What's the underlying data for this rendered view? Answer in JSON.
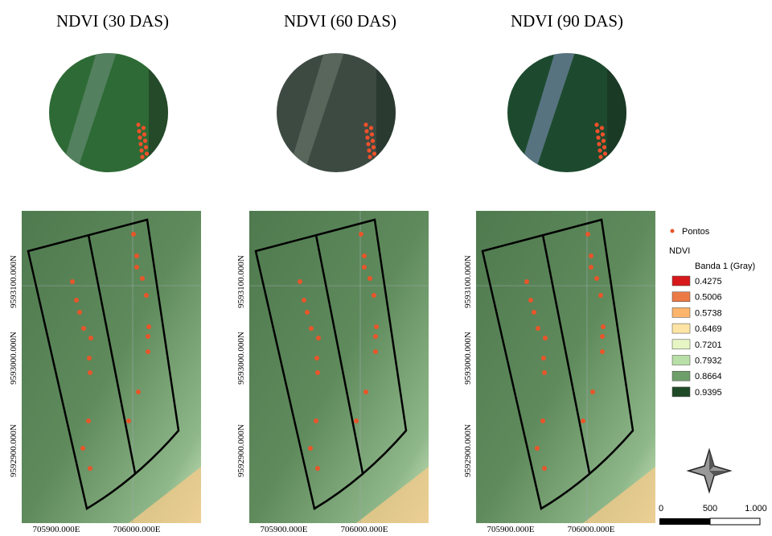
{
  "panels": [
    {
      "title": "NDVI (30 DAS)",
      "x_labels": [
        "705900.000E",
        "706000.000E"
      ],
      "y_labels": [
        "9593100.000N",
        "9593000.000N",
        "9592900.000N"
      ]
    },
    {
      "title": "NDVI (60 DAS)",
      "x_labels": [
        "705900.000E",
        "706000.000E"
      ],
      "y_labels": [
        "9593100.000N",
        "9593000.000N",
        "9592900.000N"
      ]
    },
    {
      "title": "NDVI (90 DAS)",
      "x_labels": [
        "705900.000E",
        "706000.000E"
      ],
      "y_labels": [
        "9593100.000N",
        "9593000.000N",
        "9592900.000N"
      ]
    }
  ],
  "legend": {
    "points_label": "Pontos",
    "layer": "NDVI",
    "band": "Banda 1 (Gray)",
    "items": [
      {
        "label": "0.4275",
        "color": "#d7191c"
      },
      {
        "label": "0.5006",
        "color": "#ec7a46"
      },
      {
        "label": "0.5738",
        "color": "#fdb56b"
      },
      {
        "label": "0.6469",
        "color": "#fde4a5"
      },
      {
        "label": "0.7201",
        "color": "#e6f5c4"
      },
      {
        "label": "0.7932",
        "color": "#b8dfa8"
      },
      {
        "label": "0.8664",
        "color": "#6e9e6a"
      },
      {
        "label": "0.9395",
        "color": "#1e4a28"
      }
    ]
  },
  "scale_bar": {
    "labels": [
      "0",
      "500",
      "1.000"
    ]
  }
}
